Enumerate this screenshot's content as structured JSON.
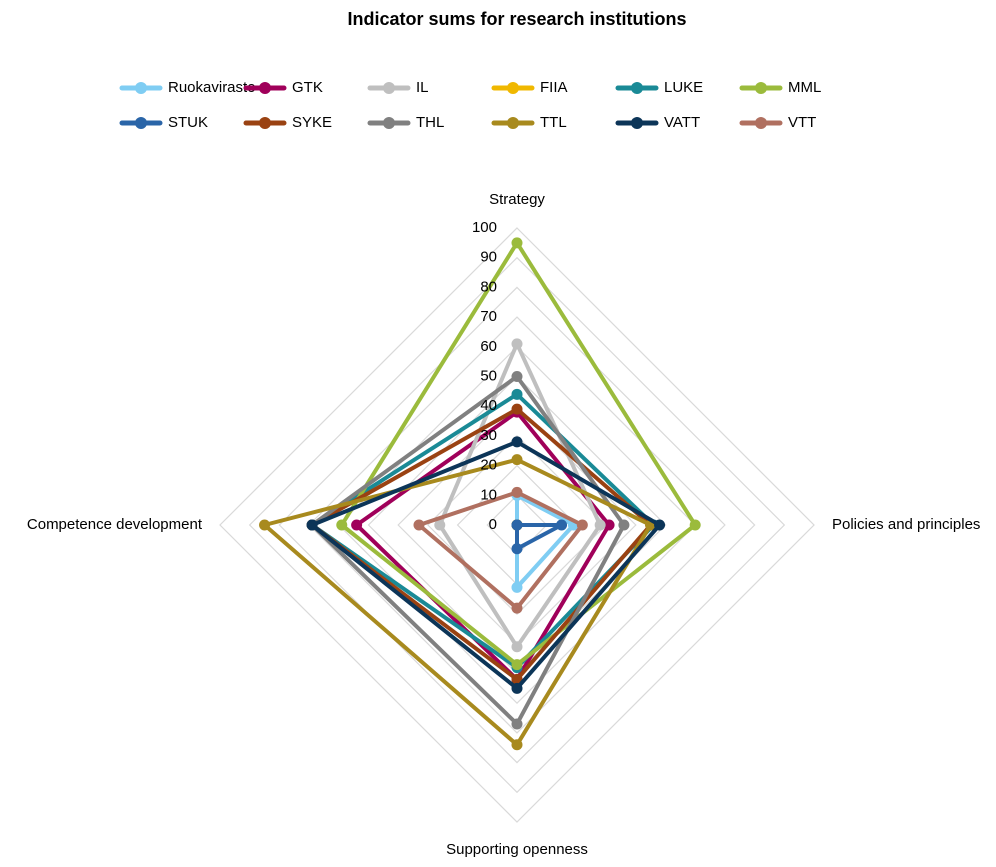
{
  "chart_data": {
    "type": "radar",
    "title": "Indicator sums for research institutions",
    "categories": [
      "Strategy",
      "Policies and principles",
      "Supporting openness",
      "Competence development"
    ],
    "ylim": [
      0,
      100
    ],
    "yticks": [
      0,
      10,
      20,
      30,
      40,
      50,
      60,
      70,
      80,
      90,
      100
    ],
    "grid": true,
    "series": [
      {
        "name": "Ruokavirasto",
        "color": "#7fcdf3",
        "values": [
          10,
          19,
          21,
          0
        ]
      },
      {
        "name": "GTK",
        "color": "#a0005a",
        "values": [
          38,
          31,
          52,
          54
        ]
      },
      {
        "name": "IL",
        "color": "#bfbfbf",
        "values": [
          61,
          28,
          41,
          26
        ]
      },
      {
        "name": "FIIA",
        "color": "#f0b800",
        "values": [
          0,
          0,
          0,
          0
        ]
      },
      {
        "name": "LUKE",
        "color": "#1a8a96",
        "values": [
          44,
          46,
          48,
          69
        ]
      },
      {
        "name": "MML",
        "color": "#9bbb3c",
        "values": [
          95,
          60,
          47,
          59
        ]
      },
      {
        "name": "STUK",
        "color": "#2a65a8",
        "values": [
          0,
          15,
          8,
          0
        ]
      },
      {
        "name": "SYKE",
        "color": "#9a4212",
        "values": [
          39,
          45,
          52,
          69
        ]
      },
      {
        "name": "THL",
        "color": "#808080",
        "values": [
          50,
          36,
          67,
          69
        ]
      },
      {
        "name": "TTL",
        "color": "#a88a1e",
        "values": [
          22,
          45,
          74,
          85
        ]
      },
      {
        "name": "VATT",
        "color": "#0c3558",
        "values": [
          28,
          48,
          55,
          69
        ]
      },
      {
        "name": "VTT",
        "color": "#b07060",
        "values": [
          11,
          22,
          28,
          33
        ]
      }
    ]
  }
}
